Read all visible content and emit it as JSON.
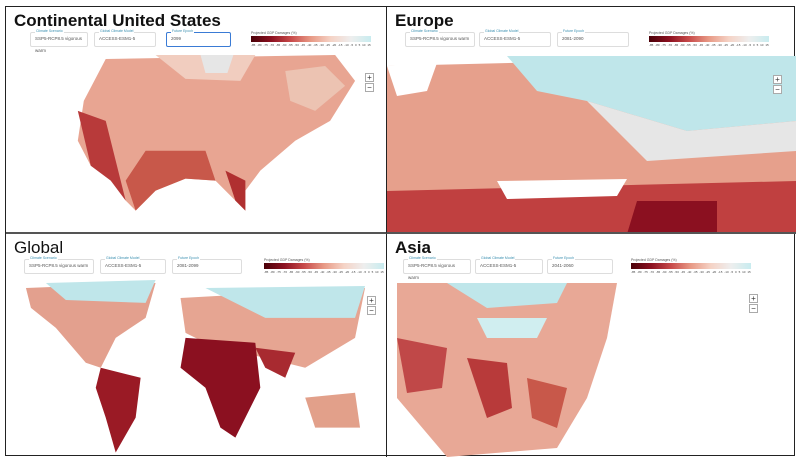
{
  "panels": [
    {
      "title": "Continental United States",
      "scenario_label": "Climate Scenario",
      "scenario": "SSP5-RCP8.5 vigorous warm",
      "model_label": "Global Climate Model",
      "model": "ACCESS-ESM1-5",
      "period_label": "Future Epoch",
      "period": "2099",
      "legend_title": "Projected GDP Damages (%)"
    },
    {
      "title": "Europe",
      "scenario_label": "Climate Scenario",
      "scenario": "SSP5-RCP8.5 vigorous warm",
      "model_label": "Global Climate Model",
      "model": "ACCESS-ESM1-5",
      "period_label": "Future Epoch",
      "period": "2081-2090",
      "legend_title": "Projected GDP Damages (%)"
    },
    {
      "title": "Global",
      "scenario_label": "Climate Scenario",
      "scenario": "SSP5-RCP8.5 vigorous warm",
      "model_label": "Global Climate Model",
      "model": "ACCESS-ESM1-5",
      "period_label": "Future Epoch",
      "period": "2081-2099",
      "legend_title": "Projected GDP Damages (%)"
    },
    {
      "title": "Asia",
      "scenario_label": "Climate Scenario",
      "scenario": "SSP5-RCP8.5 vigorous warm",
      "model_label": "Global Climate Model",
      "model": "ACCESS-ESM1-5",
      "period_label": "Future Epoch",
      "period": "2041-2060",
      "legend_title": "Projected GDP Damages (%)"
    }
  ],
  "legend_ticks": [
    "-85",
    "-80",
    "-75",
    "-70",
    "-65",
    "-60",
    "-55",
    "-50",
    "-45",
    "-40",
    "-35",
    "-30",
    "-25",
    "-20",
    "-15",
    "-10",
    "-5",
    "0",
    "5",
    "10",
    "15"
  ],
  "zoom_in": "+",
  "zoom_out": "−",
  "colors": {
    "dark": "#8b1020",
    "mid": "#d9735f",
    "light": "#f0c0b0",
    "cool": "#bfe6ea"
  }
}
